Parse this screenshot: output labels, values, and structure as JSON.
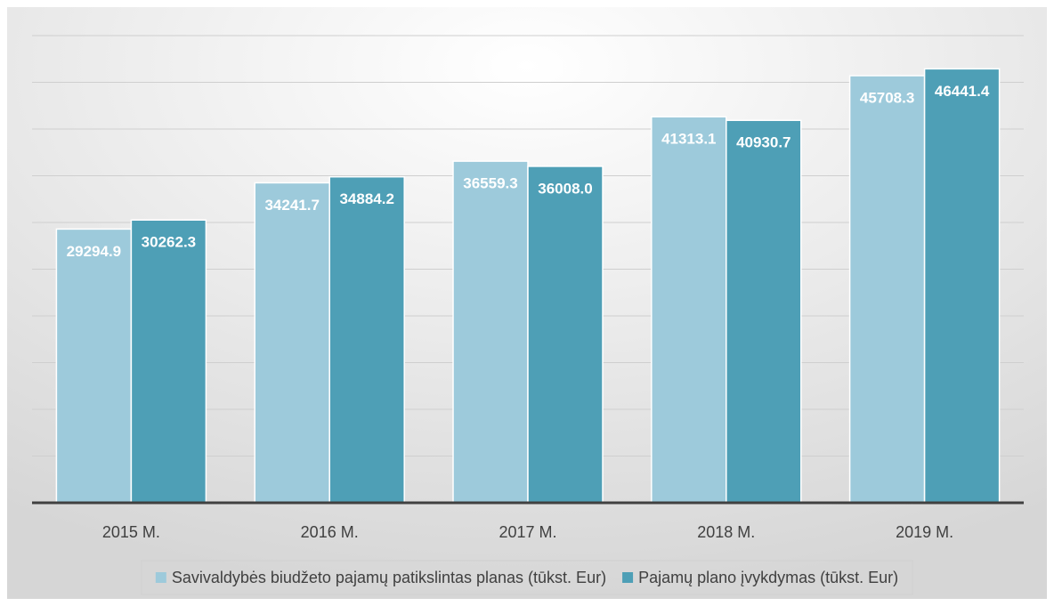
{
  "chart_data": {
    "type": "bar",
    "categories": [
      "2015 M.",
      "2016 M.",
      "2017 M.",
      "2018 M.",
      "2019 M."
    ],
    "series": [
      {
        "name": "Savivaldybės biudžeto pajamų patikslintas planas (tūkst. Eur)",
        "color": "#9dcadb",
        "values": [
          29294.9,
          34241.7,
          36559.3,
          41313.1,
          45708.3
        ],
        "value_labels": [
          "29294.9",
          "34241.7",
          "36559.3",
          "41313.1",
          "45708.3"
        ]
      },
      {
        "name": "Pajamų plano įvykdymas (tūkst. Eur)",
        "color": "#4e9fb6",
        "values": [
          30262.3,
          34884.2,
          36008.0,
          40930.7,
          46441.4
        ],
        "value_labels": [
          "30262.3",
          "34884.2",
          "36008.0",
          "40930.7",
          "46441.4"
        ]
      }
    ],
    "ylim": [
      0,
      50000
    ],
    "yticks": [
      0,
      5000,
      10000,
      15000,
      20000,
      25000,
      30000,
      35000,
      40000,
      45000,
      50000
    ],
    "grid": true,
    "legend": "bottom"
  }
}
